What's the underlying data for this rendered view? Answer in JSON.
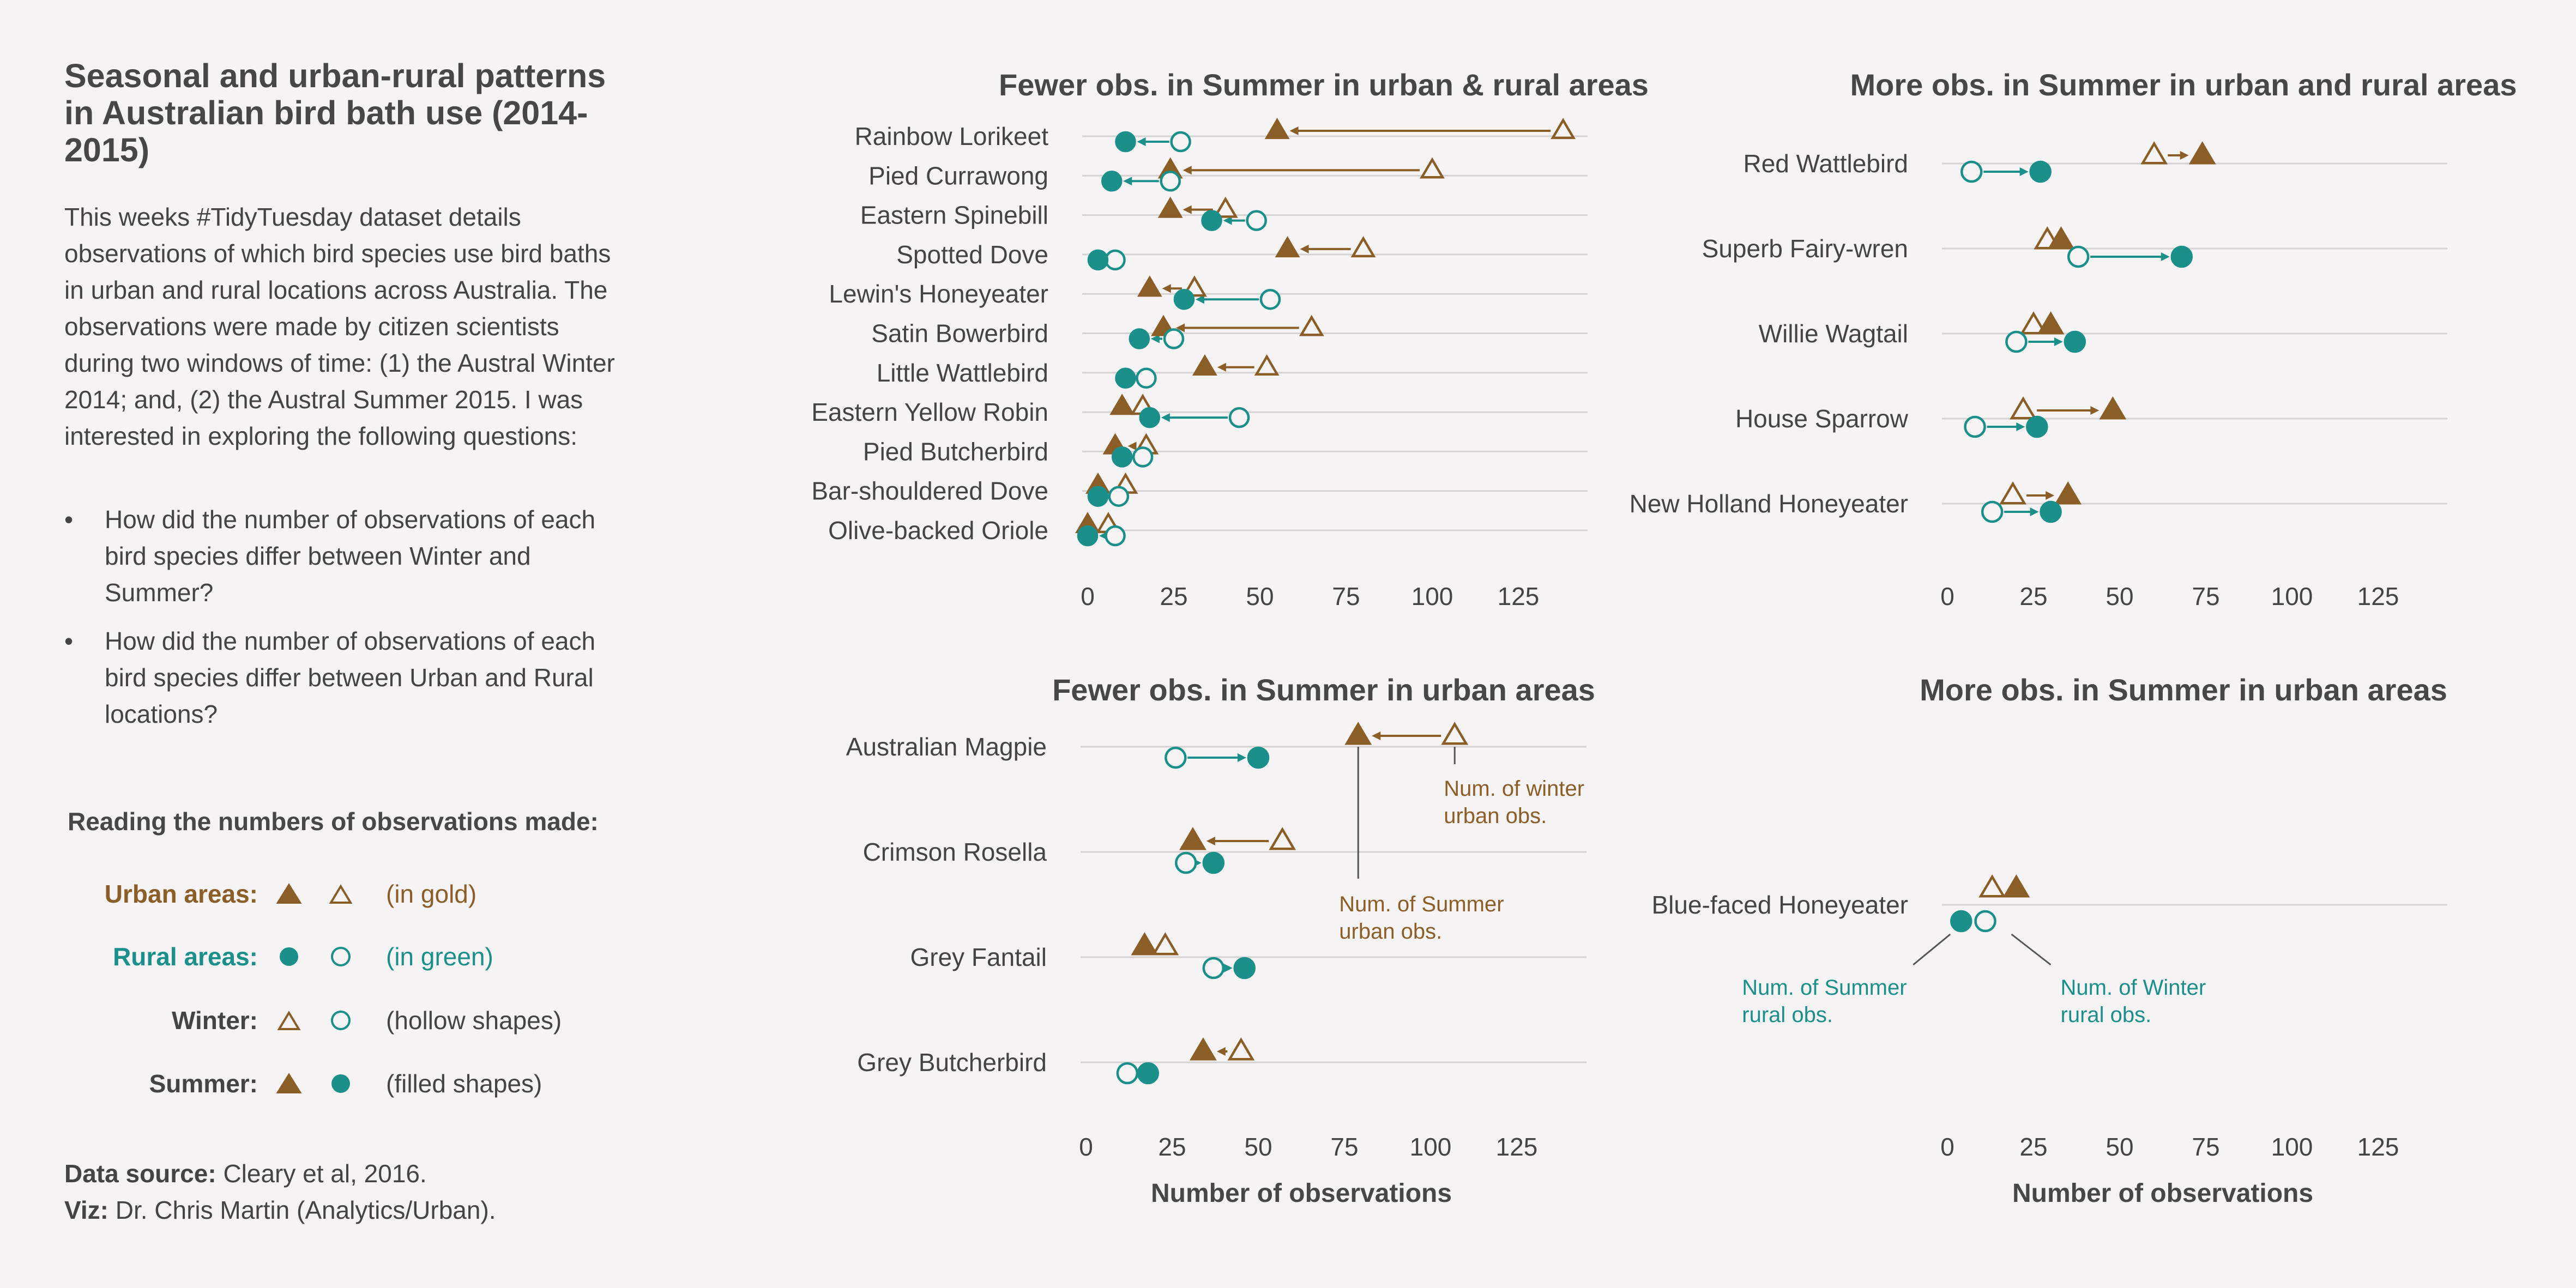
{
  "title": "Seasonal and urban-rural patterns in Australian bird bath use (2014-2015)",
  "intro": "This weeks #TidyTuesday dataset details observations of which bird species use bird baths in urban and rural locations across Australia. The observations were made by citizen scientists during two windows of time: (1) the Austral Winter 2014; and, (2) the Austral Summer 2015. I was interested in exploring the following questions:",
  "questions": [
    "How did the number of observations of each bird species differ between Winter and Summer?",
    "How did the number of observations of each bird species differ between Urban and Rural locations?"
  ],
  "legend": {
    "title": "Reading the numbers of observations made:",
    "rows": [
      {
        "label": "Urban areas:",
        "desc": "(in gold)"
      },
      {
        "label": "Rural areas:",
        "desc": "(in green)"
      },
      {
        "label": "Winter:",
        "desc": "(hollow shapes)"
      },
      {
        "label": "Summer:",
        "desc": "(filled shapes)"
      }
    ]
  },
  "footer": {
    "source_label": "Data source:",
    "source_value": "Cleary et al, 2016.",
    "viz_label": "Viz:",
    "viz_value": "Dr. Chris Martin  (Analytics/Urban)."
  },
  "colors": {
    "urban": "#8B5E27",
    "rural": "#1B8F8A",
    "grid": "#d4d2d2",
    "text": "#444444",
    "background": "#f5f3f3"
  },
  "chart_data": [
    {
      "type": "dumbbell",
      "title": "Fewer obs. in Summer in urban & rural areas",
      "xlabel": "",
      "xlim": [
        -5,
        145
      ],
      "xticks": [
        0,
        25,
        50,
        75,
        100,
        125
      ],
      "birds": [
        {
          "name": "Rainbow Lorikeet",
          "urban_winter": 138,
          "urban_summer": 55,
          "rural_winter": 27,
          "rural_summer": 11
        },
        {
          "name": "Pied Currawong",
          "urban_winter": 100,
          "urban_summer": 24,
          "rural_winter": 24,
          "rural_summer": 7
        },
        {
          "name": "Eastern Spinebill",
          "urban_winter": 40,
          "urban_summer": 24,
          "rural_winter": 49,
          "rural_summer": 36
        },
        {
          "name": "Spotted Dove",
          "urban_winter": 80,
          "urban_summer": 58,
          "rural_winter": 8,
          "rural_summer": 3
        },
        {
          "name": "Lewin's Honeyeater",
          "urban_winter": 31,
          "urban_summer": 18,
          "rural_winter": 53,
          "rural_summer": 28
        },
        {
          "name": "Satin Bowerbird",
          "urban_winter": 65,
          "urban_summer": 22,
          "rural_winter": 25,
          "rural_summer": 15
        },
        {
          "name": "Little Wattlebird",
          "urban_winter": 52,
          "urban_summer": 34,
          "rural_winter": 17,
          "rural_summer": 11
        },
        {
          "name": "Eastern Yellow Robin",
          "urban_winter": 16,
          "urban_summer": 10,
          "rural_winter": 44,
          "rural_summer": 18
        },
        {
          "name": "Pied Butcherbird",
          "urban_winter": 17,
          "urban_summer": 8,
          "rural_winter": 16,
          "rural_summer": 10
        },
        {
          "name": "Bar-shouldered Dove",
          "urban_winter": 11,
          "urban_summer": 3,
          "rural_winter": 9,
          "rural_summer": 3
        },
        {
          "name": "Olive-backed Oriole",
          "urban_winter": 6,
          "urban_summer": 0,
          "rural_winter": 8,
          "rural_summer": 0
        }
      ],
      "annotations": []
    },
    {
      "type": "dumbbell",
      "title": "More obs. in Summer in urban and rural areas",
      "xlabel": "",
      "xlim": [
        -5,
        145
      ],
      "xticks": [
        0,
        25,
        50,
        75,
        100,
        125
      ],
      "birds": [
        {
          "name": "Red Wattlebird",
          "urban_winter": 60,
          "urban_summer": 74,
          "rural_winter": 7,
          "rural_summer": 27
        },
        {
          "name": "Superb Fairy-wren",
          "urban_winter": 29,
          "urban_summer": 33,
          "rural_winter": 38,
          "rural_summer": 68
        },
        {
          "name": "Willie Wagtail",
          "urban_winter": 25,
          "urban_summer": 30,
          "rural_winter": 20,
          "rural_summer": 37
        },
        {
          "name": "House Sparrow",
          "urban_winter": 22,
          "urban_summer": 48,
          "rural_winter": 8,
          "rural_summer": 26
        },
        {
          "name": "New Holland Honeyeater",
          "urban_winter": 19,
          "urban_summer": 35,
          "rural_winter": 13,
          "rural_summer": 30
        }
      ],
      "annotations": []
    },
    {
      "type": "dumbbell",
      "title": "Fewer obs. in Summer in urban areas",
      "xlabel": "Number of observations",
      "xlim": [
        -5,
        145
      ],
      "xticks": [
        0,
        25,
        50,
        75,
        100,
        125
      ],
      "birds": [
        {
          "name": "Australian Magpie",
          "urban_winter": 107,
          "urban_summer": 79,
          "rural_winter": 26,
          "rural_summer": 50
        },
        {
          "name": "Crimson Rosella",
          "urban_winter": 57,
          "urban_summer": 31,
          "rural_winter": 29,
          "rural_summer": 37
        },
        {
          "name": "Grey Fantail",
          "urban_winter": 23,
          "urban_summer": 17,
          "rural_winter": 37,
          "rural_summer": 46
        },
        {
          "name": "Grey Butcherbird",
          "urban_winter": 45,
          "urban_summer": 34,
          "rural_winter": 12,
          "rural_summer": 18
        }
      ],
      "annotations": [
        {
          "text": "Num. of winter urban obs.",
          "color": "urban",
          "target": "Australian Magpie urban_winter"
        },
        {
          "text": "Num. of Summer urban obs.",
          "color": "urban",
          "target": "Australian Magpie urban_summer"
        }
      ]
    },
    {
      "type": "dumbbell",
      "title": "More obs.  in Summer in urban areas",
      "xlabel": "Number of observations",
      "xlim": [
        -5,
        145
      ],
      "xticks": [
        0,
        25,
        50,
        75,
        100,
        125
      ],
      "birds": [
        {
          "name": "Blue-faced Honeyeater",
          "urban_winter": 13,
          "urban_summer": 20,
          "rural_winter": 11,
          "rural_summer": 4
        }
      ],
      "annotations": [
        {
          "text": "Num. of Summer rural obs.",
          "color": "rural",
          "target": "Blue-faced Honeyeater rural_summer"
        },
        {
          "text": "Num. of Winter rural obs.",
          "color": "rural",
          "target": "Blue-faced Honeyeater rural_winter"
        }
      ]
    }
  ]
}
